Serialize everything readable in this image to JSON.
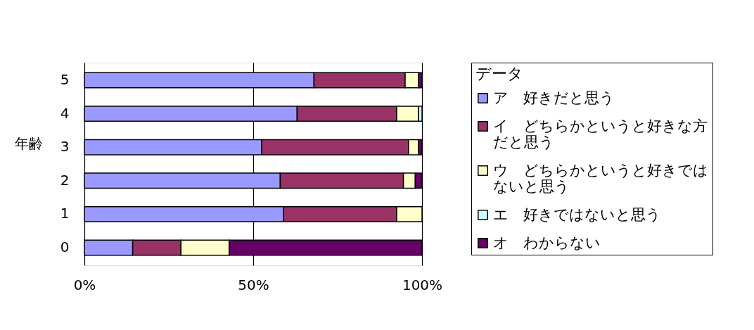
{
  "chart_data": {
    "type": "bar",
    "orientation": "horizontal",
    "stacked": true,
    "ylabel": "年齢",
    "legend_title": "データ",
    "categories": [
      "5",
      "4",
      "3",
      "2",
      "1",
      "0"
    ],
    "series": [
      {
        "name": "ア　好きだと思う",
        "color": "#9999ff",
        "values": [
          68,
          63,
          52.5,
          58,
          59,
          14.3
        ]
      },
      {
        "name": "イ　どちらかというと好きな方だと思う",
        "color": "#993366",
        "values": [
          27,
          29.5,
          43.5,
          36.5,
          33.5,
          14.3
        ]
      },
      {
        "name": "ウ　どちらかというと好きではないと思う",
        "color": "#ffffcc",
        "values": [
          4,
          6.5,
          3,
          3.5,
          7.5,
          14.3
        ]
      },
      {
        "name": "エ　好きではないと思う",
        "color": "#ccffff",
        "values": [
          0,
          1,
          0,
          0,
          0,
          0
        ]
      },
      {
        "name": "オ　わからない",
        "color": "#660066",
        "values": [
          1,
          0,
          1,
          2,
          0,
          57.1
        ]
      }
    ],
    "xlim": [
      0,
      100
    ],
    "xticks": [
      {
        "value": 0,
        "label": "0%"
      },
      {
        "value": 50,
        "label": "50%"
      },
      {
        "value": 100,
        "label": "100%"
      }
    ],
    "grid": "x",
    "legend": "right"
  }
}
